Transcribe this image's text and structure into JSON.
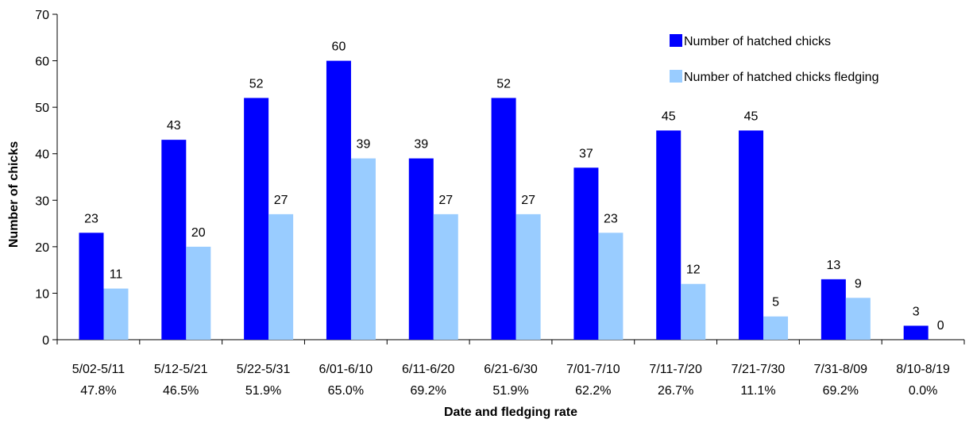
{
  "chart_data": {
    "type": "bar",
    "title": "",
    "xlabel": "Date and fledging rate",
    "ylabel": "Number of chicks",
    "ylim": [
      0,
      70
    ],
    "yticks": [
      0,
      10,
      20,
      30,
      40,
      50,
      60,
      70
    ],
    "grid": false,
    "legend_position": "top-right",
    "categories": [
      "5/02-5/11",
      "5/12-5/21",
      "5/22-5/31",
      "6/01-6/10",
      "6/11-6/20",
      "6/21-6/30",
      "7/01-7/10",
      "7/11-7/20",
      "7/21-7/30",
      "7/31-8/09",
      "8/10-8/19"
    ],
    "category_rates": [
      "47.8%",
      "46.5%",
      "51.9%",
      "65.0%",
      "69.2%",
      "51.9%",
      "62.2%",
      "26.7%",
      "11.1%",
      "69.2%",
      "0.0%"
    ],
    "series": [
      {
        "name": "Number of hatched chicks",
        "color": "#0000FF",
        "values": [
          23,
          43,
          52,
          60,
          39,
          52,
          37,
          45,
          45,
          13,
          3
        ]
      },
      {
        "name": "Number of hatched chicks fledging",
        "color": "#99CCFF",
        "values": [
          11,
          20,
          27,
          39,
          27,
          27,
          23,
          12,
          5,
          9,
          0
        ]
      }
    ]
  }
}
